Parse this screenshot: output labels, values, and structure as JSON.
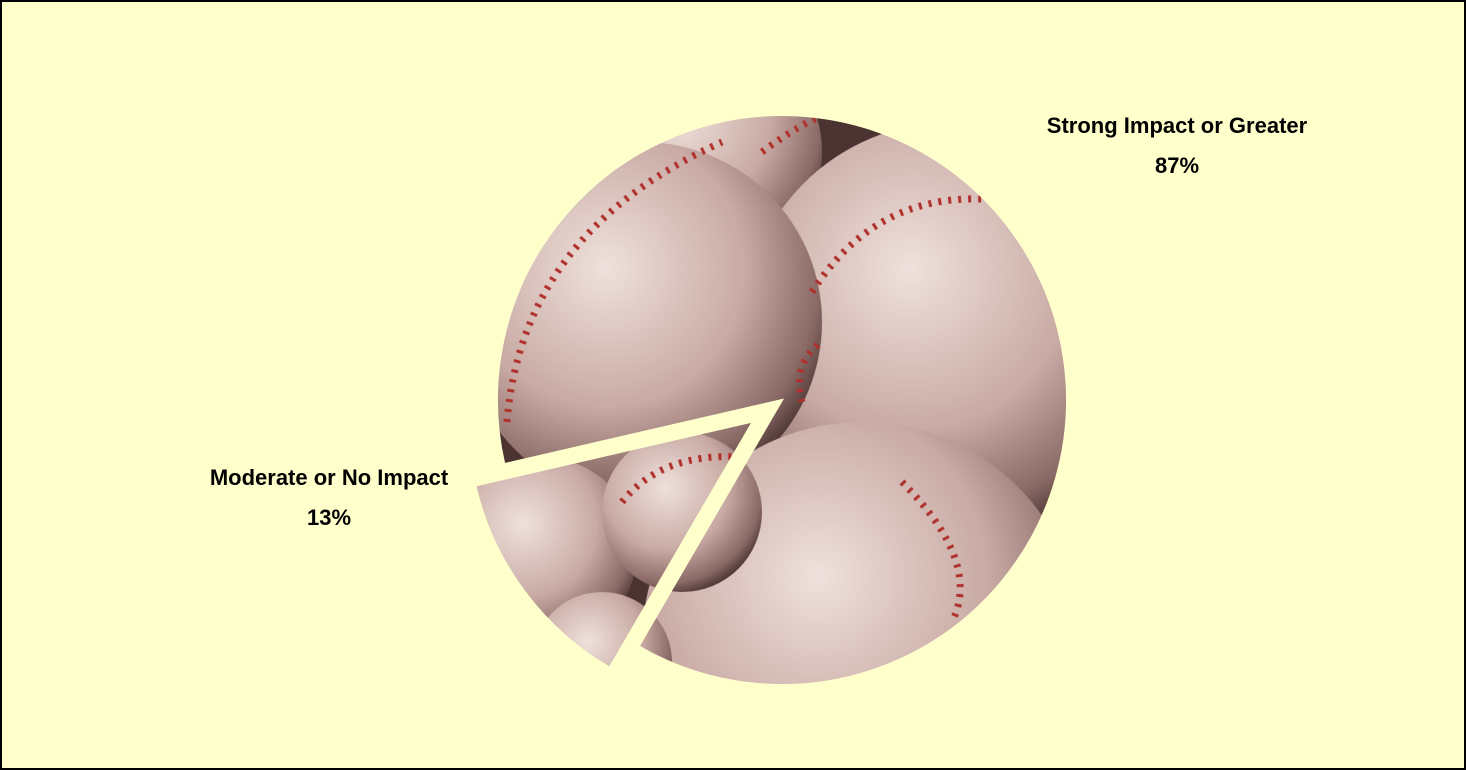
{
  "chart_data": {
    "type": "pie",
    "categories": [
      "Strong Impact or Greater",
      "Moderate or No Impact"
    ],
    "values": [
      87,
      13
    ],
    "value_labels": [
      "87%",
      "13%"
    ]
  }
}
